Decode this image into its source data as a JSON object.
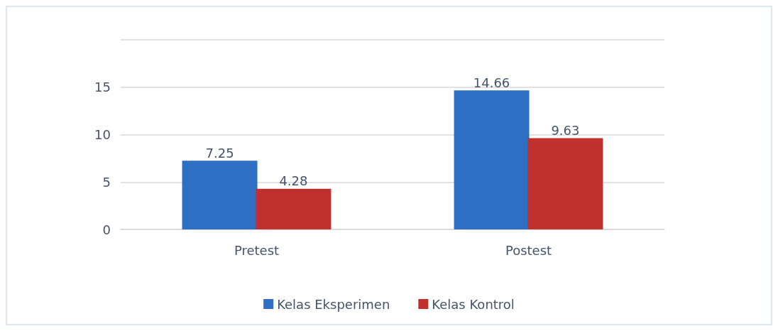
{
  "chart_data": {
    "type": "bar",
    "categories": [
      "Pretest",
      "Postest"
    ],
    "series": [
      {
        "name": "Kelas Eksperimen",
        "color": "#2e6fc4",
        "values": [
          7.25,
          14.66
        ]
      },
      {
        "name": "Kelas Kontrol",
        "color": "#c0302e",
        "values": [
          4.28,
          9.63
        ]
      }
    ],
    "ylim": [
      0,
      20
    ],
    "yticks": [
      0,
      5,
      10,
      15,
      {
        "value": 20,
        "label": null
      }
    ],
    "grid": "y",
    "legend": "bottom",
    "data_labels": true
  }
}
